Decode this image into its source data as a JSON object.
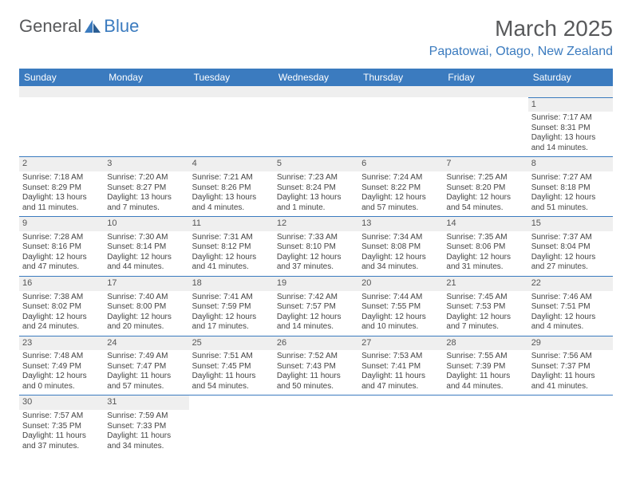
{
  "logo": {
    "part1": "General",
    "part2": "Blue"
  },
  "title": "March 2025",
  "location": "Papatowai, Otago, New Zealand",
  "colors": {
    "header_bg": "#3b7bbf",
    "header_text": "#ffffff",
    "daynum_bg": "#efefef",
    "text": "#444444",
    "title_color": "#58595b"
  },
  "daynames": [
    "Sunday",
    "Monday",
    "Tuesday",
    "Wednesday",
    "Thursday",
    "Friday",
    "Saturday"
  ],
  "weeks": [
    [
      null,
      null,
      null,
      null,
      null,
      null,
      {
        "d": "1",
        "sr": "7:17 AM",
        "ss": "8:31 PM",
        "dl": "13 hours and 14 minutes."
      }
    ],
    [
      {
        "d": "2",
        "sr": "7:18 AM",
        "ss": "8:29 PM",
        "dl": "13 hours and 11 minutes."
      },
      {
        "d": "3",
        "sr": "7:20 AM",
        "ss": "8:27 PM",
        "dl": "13 hours and 7 minutes."
      },
      {
        "d": "4",
        "sr": "7:21 AM",
        "ss": "8:26 PM",
        "dl": "13 hours and 4 minutes."
      },
      {
        "d": "5",
        "sr": "7:23 AM",
        "ss": "8:24 PM",
        "dl": "13 hours and 1 minute."
      },
      {
        "d": "6",
        "sr": "7:24 AM",
        "ss": "8:22 PM",
        "dl": "12 hours and 57 minutes."
      },
      {
        "d": "7",
        "sr": "7:25 AM",
        "ss": "8:20 PM",
        "dl": "12 hours and 54 minutes."
      },
      {
        "d": "8",
        "sr": "7:27 AM",
        "ss": "8:18 PM",
        "dl": "12 hours and 51 minutes."
      }
    ],
    [
      {
        "d": "9",
        "sr": "7:28 AM",
        "ss": "8:16 PM",
        "dl": "12 hours and 47 minutes."
      },
      {
        "d": "10",
        "sr": "7:30 AM",
        "ss": "8:14 PM",
        "dl": "12 hours and 44 minutes."
      },
      {
        "d": "11",
        "sr": "7:31 AM",
        "ss": "8:12 PM",
        "dl": "12 hours and 41 minutes."
      },
      {
        "d": "12",
        "sr": "7:33 AM",
        "ss": "8:10 PM",
        "dl": "12 hours and 37 minutes."
      },
      {
        "d": "13",
        "sr": "7:34 AM",
        "ss": "8:08 PM",
        "dl": "12 hours and 34 minutes."
      },
      {
        "d": "14",
        "sr": "7:35 AM",
        "ss": "8:06 PM",
        "dl": "12 hours and 31 minutes."
      },
      {
        "d": "15",
        "sr": "7:37 AM",
        "ss": "8:04 PM",
        "dl": "12 hours and 27 minutes."
      }
    ],
    [
      {
        "d": "16",
        "sr": "7:38 AM",
        "ss": "8:02 PM",
        "dl": "12 hours and 24 minutes."
      },
      {
        "d": "17",
        "sr": "7:40 AM",
        "ss": "8:00 PM",
        "dl": "12 hours and 20 minutes."
      },
      {
        "d": "18",
        "sr": "7:41 AM",
        "ss": "7:59 PM",
        "dl": "12 hours and 17 minutes."
      },
      {
        "d": "19",
        "sr": "7:42 AM",
        "ss": "7:57 PM",
        "dl": "12 hours and 14 minutes."
      },
      {
        "d": "20",
        "sr": "7:44 AM",
        "ss": "7:55 PM",
        "dl": "12 hours and 10 minutes."
      },
      {
        "d": "21",
        "sr": "7:45 AM",
        "ss": "7:53 PM",
        "dl": "12 hours and 7 minutes."
      },
      {
        "d": "22",
        "sr": "7:46 AM",
        "ss": "7:51 PM",
        "dl": "12 hours and 4 minutes."
      }
    ],
    [
      {
        "d": "23",
        "sr": "7:48 AM",
        "ss": "7:49 PM",
        "dl": "12 hours and 0 minutes."
      },
      {
        "d": "24",
        "sr": "7:49 AM",
        "ss": "7:47 PM",
        "dl": "11 hours and 57 minutes."
      },
      {
        "d": "25",
        "sr": "7:51 AM",
        "ss": "7:45 PM",
        "dl": "11 hours and 54 minutes."
      },
      {
        "d": "26",
        "sr": "7:52 AM",
        "ss": "7:43 PM",
        "dl": "11 hours and 50 minutes."
      },
      {
        "d": "27",
        "sr": "7:53 AM",
        "ss": "7:41 PM",
        "dl": "11 hours and 47 minutes."
      },
      {
        "d": "28",
        "sr": "7:55 AM",
        "ss": "7:39 PM",
        "dl": "11 hours and 44 minutes."
      },
      {
        "d": "29",
        "sr": "7:56 AM",
        "ss": "7:37 PM",
        "dl": "11 hours and 41 minutes."
      }
    ],
    [
      {
        "d": "30",
        "sr": "7:57 AM",
        "ss": "7:35 PM",
        "dl": "11 hours and 37 minutes."
      },
      {
        "d": "31",
        "sr": "7:59 AM",
        "ss": "7:33 PM",
        "dl": "11 hours and 34 minutes."
      },
      null,
      null,
      null,
      null,
      null
    ]
  ],
  "labels": {
    "sunrise": "Sunrise:",
    "sunset": "Sunset:",
    "daylight": "Daylight:"
  }
}
